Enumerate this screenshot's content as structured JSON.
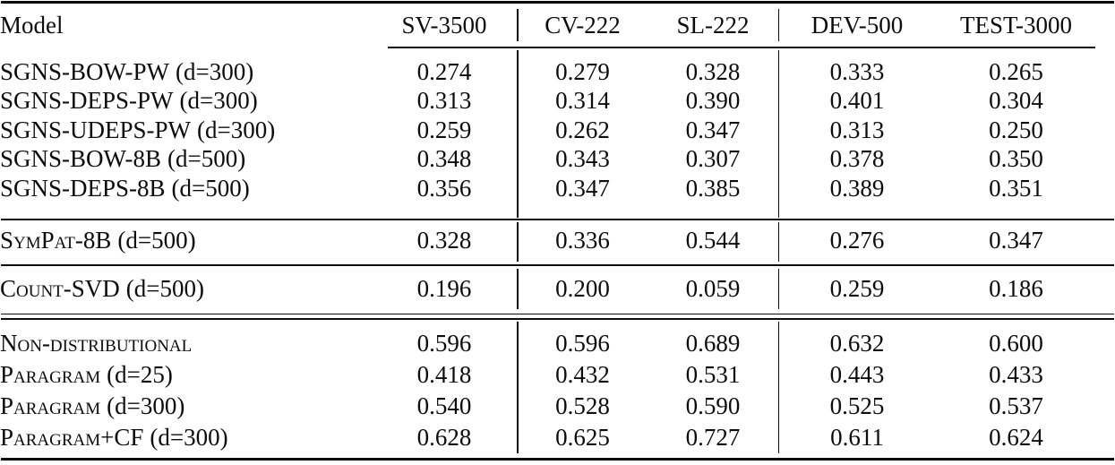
{
  "page": {
    "background_color": "#ffffff",
    "ink_color": "#0c0c0c"
  },
  "table": {
    "columns": [
      "Model",
      "SV-3500",
      "CV-222",
      "SL-222",
      "DEV-500",
      "TEST-3000"
    ],
    "groups": [
      {
        "rows": [
          {
            "name": "SGNS-BOW-PW",
            "dim": "(d=300)",
            "values": [
              "0.274",
              "0.279",
              "0.328",
              "0.333",
              "0.265"
            ]
          },
          {
            "name": "SGNS-DEPS-PW",
            "dim": "(d=300)",
            "values": [
              "0.313",
              "0.314",
              "0.390",
              "0.401",
              "0.304"
            ]
          },
          {
            "name": "SGNS-UDEPS-PW",
            "dim": "(d=300)",
            "values": [
              "0.259",
              "0.262",
              "0.347",
              "0.313",
              "0.250"
            ]
          },
          {
            "name": "SGNS-BOW-8B",
            "dim": "(d=500)",
            "values": [
              "0.348",
              "0.343",
              "0.307",
              "0.378",
              "0.350"
            ]
          },
          {
            "name": "SGNS-DEPS-8B",
            "dim": "(d=500)",
            "values": [
              "0.356",
              "0.347",
              "0.385",
              "0.389",
              "0.351"
            ]
          }
        ]
      },
      {
        "rows": [
          {
            "name": "SymPat-8B",
            "dim": "(d=500)",
            "values": [
              "0.328",
              "0.336",
              "0.544",
              "0.276",
              "0.347"
            ]
          }
        ]
      },
      {
        "rows": [
          {
            "name": "Count-SVD",
            "dim": "(d=500)",
            "values": [
              "0.196",
              "0.200",
              "0.059",
              "0.259",
              "0.186"
            ]
          }
        ]
      },
      {
        "rows": [
          {
            "name": "Non-distributional",
            "dim": "",
            "values": [
              "0.596",
              "0.596",
              "0.689",
              "0.632",
              "0.600"
            ]
          },
          {
            "name": "Paragram",
            "dim": "(d=25)",
            "values": [
              "0.418",
              "0.432",
              "0.531",
              "0.443",
              "0.433"
            ]
          },
          {
            "name": "Paragram",
            "dim": "(d=300)",
            "values": [
              "0.540",
              "0.528",
              "0.590",
              "0.525",
              "0.537"
            ]
          },
          {
            "name": "Paragram+CF",
            "dim": "(d=300)",
            "values": [
              "0.628",
              "0.625",
              "0.727",
              "0.611",
              "0.624"
            ]
          }
        ]
      }
    ]
  }
}
